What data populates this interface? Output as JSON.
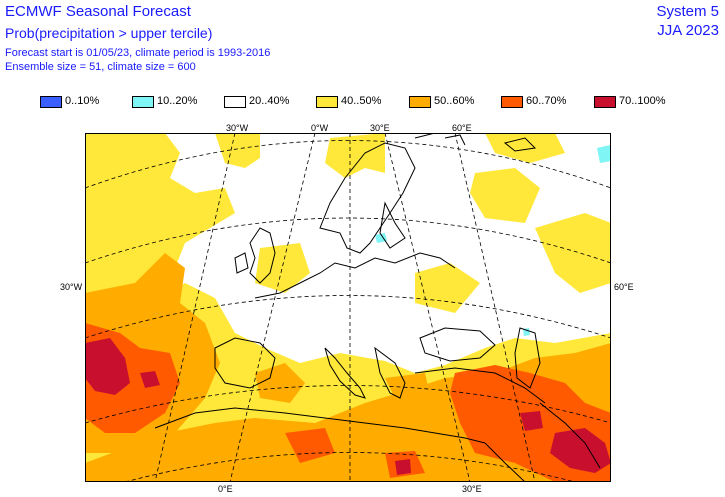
{
  "header": {
    "title": "ECMWF Seasonal Forecast",
    "subtitle": "Prob(precipitation > upper tercile)",
    "line1": "Forecast start is 01/05/23, climate period is 1993-2016",
    "line2": "Ensemble size = 51, climate size = 600",
    "system": "System 5",
    "season": "JJA 2023"
  },
  "legend": [
    {
      "label": "0..10%",
      "color": "#3a5eff"
    },
    {
      "label": "10..20%",
      "color": "#7ff5f5"
    },
    {
      "label": "20..40%",
      "color": "#ffffff"
    },
    {
      "label": "40..50%",
      "color": "#ffe83a"
    },
    {
      "label": "50..60%",
      "color": "#ffab00"
    },
    {
      "label": "60..70%",
      "color": "#ff5a00"
    },
    {
      "label": "70..100%",
      "color": "#c8102e"
    }
  ],
  "axes": {
    "top": [
      "30°W",
      "0°W",
      "30°E",
      "60°E"
    ],
    "left": "30°W",
    "right": "60°E",
    "bottom": [
      "0°E",
      "30°E"
    ]
  }
}
